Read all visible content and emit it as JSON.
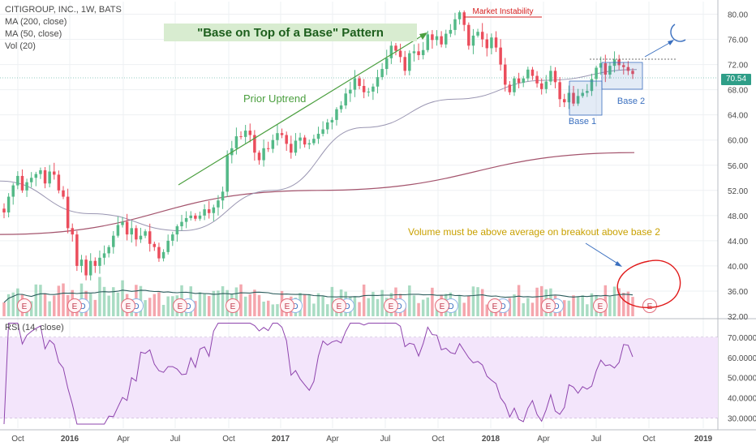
{
  "chart_data": {
    "type": "candlestick",
    "legend": {
      "symbol": "CITIGROUP, INC., 1W, BATS",
      "ma200": "MA (200, close)",
      "ma50": "MA (50, close)",
      "vol": "Vol (20)",
      "rsi": "RSI (14, close)"
    },
    "last_price": "70.54",
    "price_axis": {
      "range": [
        32,
        82
      ],
      "ticks": [
        32,
        36,
        40,
        44,
        48,
        52,
        56,
        60,
        64,
        68,
        72,
        76,
        80
      ],
      "tick_labels": [
        "32.00",
        "36.00",
        "40.00",
        "44.00",
        "48.00",
        "52.00",
        "56.00",
        "60.00",
        "64.00",
        "68.00",
        "72.00",
        "76.00",
        "80.00"
      ]
    },
    "rsi_axis": {
      "range": [
        25,
        78
      ],
      "ticks": [
        30,
        40,
        50,
        60,
        70
      ],
      "tick_labels": [
        "30.0000",
        "40.0000",
        "50.0000",
        "60.0000",
        "70.0000"
      ],
      "band": [
        30,
        70
      ]
    },
    "x_axis": {
      "labels": [
        "Oct",
        "2016",
        "Apr",
        "Jul",
        "Oct",
        "2017",
        "Apr",
        "Jul",
        "Oct",
        "2018",
        "Apr",
        "Jul",
        "Oct",
        "2019"
      ],
      "bold": [
        "2016",
        "2017",
        "2018",
        "2019"
      ]
    },
    "closes": [
      48.5,
      51.0,
      52.8,
      54.3,
      52.0,
      53.3,
      54.0,
      54.6,
      55.2,
      53.1,
      55.0,
      54.5,
      52.0,
      51.0,
      46.0,
      45.0,
      40.0,
      41.0,
      38.5,
      40.8,
      40.0,
      41.3,
      42.0,
      43.0,
      44.8,
      46.5,
      47.0,
      45.0,
      46.0,
      44.2,
      44.8,
      45.5,
      43.5,
      43.0,
      41.2,
      42.2,
      44.0,
      45.0,
      46.3,
      47.0,
      47.6,
      48.0,
      47.5,
      48.0,
      49.0,
      48.4,
      49.3,
      50.4,
      51.8,
      57.6,
      58.7,
      60.6,
      60.5,
      61.5,
      60.8,
      58.0,
      56.8,
      58.7,
      58.6,
      60.0,
      61.1,
      60.8,
      59.4,
      58.0,
      59.9,
      60.4,
      59.3,
      59.5,
      60.2,
      61.0,
      61.7,
      62.8,
      63.2,
      64.9,
      65.5,
      67.4,
      68.0,
      69.8,
      68.6,
      67.6,
      67.7,
      68.5,
      70.0,
      71.3,
      73.0,
      75.0,
      74.2,
      73.2,
      71.0,
      73.8,
      74.1,
      73.5,
      74.3,
      76.8,
      75.9,
      76.5,
      75.2,
      76.9,
      77.5,
      79.2,
      80.3,
      78.3,
      75.0,
      76.6,
      77.2,
      76.0,
      74.6,
      76.3,
      74.7,
      72.0,
      68.8,
      67.6,
      69.8,
      69.1,
      69.8,
      71.2,
      70.2,
      69.0,
      68.1,
      69.3,
      71.0,
      69.2,
      66.5,
      66.0,
      67.5,
      65.8,
      67.0,
      67.5,
      67.8,
      69.7,
      71.5,
      72.2,
      70.4,
      71.8,
      72.8,
      71.9,
      71.6,
      71.0,
      70.5
    ],
    "ma200": [
      45.0,
      52.0,
      58.0
    ],
    "ma50": [
      53.5,
      48.3,
      45.6,
      52.0,
      62.0,
      66.5,
      69.5,
      71.2
    ],
    "annotations": {
      "title": "\"Base on Top of a Base\" Pattern",
      "market_instability": "Market Instability",
      "prior_uptrend": "Prior Uptrend",
      "base1": "Base 1",
      "base2": "Base 2",
      "volume_note": "Volume must be above average on breakout above base 2"
    },
    "earnings_markers": [
      "E",
      "E",
      "E",
      "E",
      "E",
      "E",
      "E",
      "E",
      "E",
      "E",
      "E",
      "E",
      "E"
    ],
    "dividend_markers": [
      "D",
      "D",
      "D",
      "D",
      "D",
      "D",
      "D",
      "D",
      "D"
    ],
    "colors": {
      "up": "#53b987",
      "down": "#eb4d5c",
      "ma200": "#a4546d",
      "ma50": "#9a96b2",
      "volume_ma": "#2b5c5c",
      "rsi": "#8e44ad",
      "rsi_band": "#f3e5fb",
      "annotation_green": "#4b9f3f",
      "annotation_blue": "#3a6fbf",
      "annotation_red": "#d62020",
      "annotation_gold": "#c9a100"
    }
  }
}
